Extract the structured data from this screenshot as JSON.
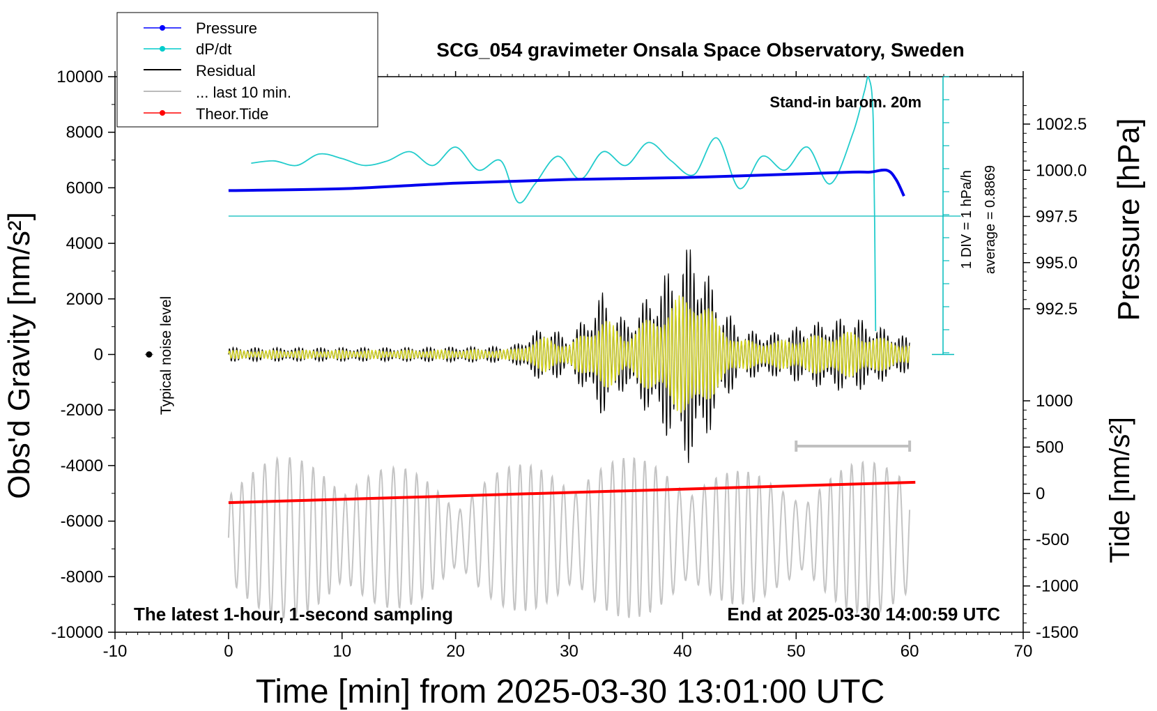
{
  "chart_data": {
    "type": "line",
    "title": "SCG_054 gravimeter Onsala Space Observatory, Sweden",
    "xlabel": "Time [min] from 2025-03-30 13:01:00 UTC",
    "ylabel_left": "Obs'd Gravity [nm/s²]",
    "ylabel_right_top": "Pressure [hPa]",
    "ylabel_right_bottom": "Tide [nm/s²]",
    "xlim": [
      -10,
      70
    ],
    "ylim": [
      -10000,
      10000
    ],
    "pressure_ylim": [
      992.5,
      1002.5
    ],
    "tide_ylim": [
      -1500,
      1000
    ],
    "x_ticks": [
      "-10",
      "0",
      "10",
      "20",
      "30",
      "40",
      "50",
      "60",
      "70"
    ],
    "y_ticks": [
      "10000",
      "8000",
      "6000",
      "4000",
      "2000",
      "0",
      "-2000",
      "-4000",
      "-6000",
      "-8000",
      "-10000"
    ],
    "pressure_ticks": [
      "1002.5",
      "1000.0",
      "997.5",
      "995.0",
      "992.5"
    ],
    "tide_ticks": [
      "1000",
      "500",
      "0",
      "-500",
      "-1000",
      "-1500"
    ],
    "legend_position": "top-left",
    "legend": [
      {
        "name": "Pressure",
        "color": "#0000ff",
        "style": "line-dot"
      },
      {
        "name": "dP/dt",
        "color": "#00cccc",
        "style": "line-dot"
      },
      {
        "name": "Residual",
        "color": "#000000",
        "style": "line"
      },
      {
        "name": "... last 10 min.",
        "color": "#bbbbbb",
        "style": "line"
      },
      {
        "name": "Theor.Tide",
        "color": "#ff0000",
        "style": "line-dot"
      }
    ],
    "annotations": {
      "stand_in": "Stand-in barom. 20m",
      "dpdt_scale": "1 DIV = 1 hPa/h",
      "dpdt_average": "average = 0.8869",
      "noise_label": "Typical noise level",
      "bottom_left": "The latest 1-hour, 1-second sampling",
      "bottom_right": "End at 2025-03-30 14:00:59 UTC"
    },
    "series": [
      {
        "name": "Pressure",
        "unit": "hPa",
        "x": [
          0,
          10,
          20,
          30,
          40,
          50,
          55,
          56.5,
          58,
          58.8,
          59.5
        ],
        "y": [
          998.9,
          999.0,
          999.3,
          999.5,
          999.6,
          999.8,
          999.9,
          999.9,
          1000.0,
          999.5,
          998.6
        ]
      },
      {
        "name": "dP/dt",
        "unit": "hPa/h",
        "x": [
          2,
          4,
          6,
          8,
          10,
          12,
          14,
          16,
          18,
          20,
          22,
          24,
          25.5,
          27,
          29,
          31,
          33,
          35,
          37,
          39,
          41,
          43,
          45,
          47,
          49,
          51,
          53,
          55,
          56,
          56.4,
          56.8,
          57.0
        ],
        "y": [
          1.15,
          1.2,
          1.1,
          1.35,
          1.25,
          1.1,
          1.2,
          1.4,
          1.1,
          1.5,
          1.0,
          1.2,
          0.3,
          0.7,
          1.3,
          0.8,
          1.4,
          1.1,
          1.6,
          1.2,
          0.9,
          1.7,
          0.6,
          1.3,
          1.0,
          1.5,
          0.7,
          1.8,
          2.7,
          3.0,
          2.0,
          -2.5
        ]
      },
      {
        "name": "Residual",
        "unit": "nm/s²",
        "x_start": 0,
        "x_end": 60,
        "envelope_x": [
          0,
          15,
          25,
          28,
          30,
          33,
          35,
          38,
          41,
          43,
          45,
          48,
          52,
          55,
          60
        ],
        "envelope_y": [
          250,
          250,
          300,
          1100,
          600,
          2300,
          1200,
          2700,
          4200,
          2200,
          900,
          800,
          1200,
          1400,
          600
        ]
      },
      {
        "name": "... last 10 min.",
        "unit": "nm/s²",
        "x_start": 0,
        "x_end": 60,
        "baseline": -6600,
        "amplitude_max": 2900
      },
      {
        "name": "Theor.Tide",
        "unit": "nm/s²",
        "x": [
          0,
          60.5
        ],
        "y": [
          -100,
          120
        ]
      }
    ],
    "noise_level": {
      "x": -7,
      "y": 0
    },
    "scale_bar": {
      "x": [
        50,
        60
      ],
      "y": -3300
    }
  }
}
